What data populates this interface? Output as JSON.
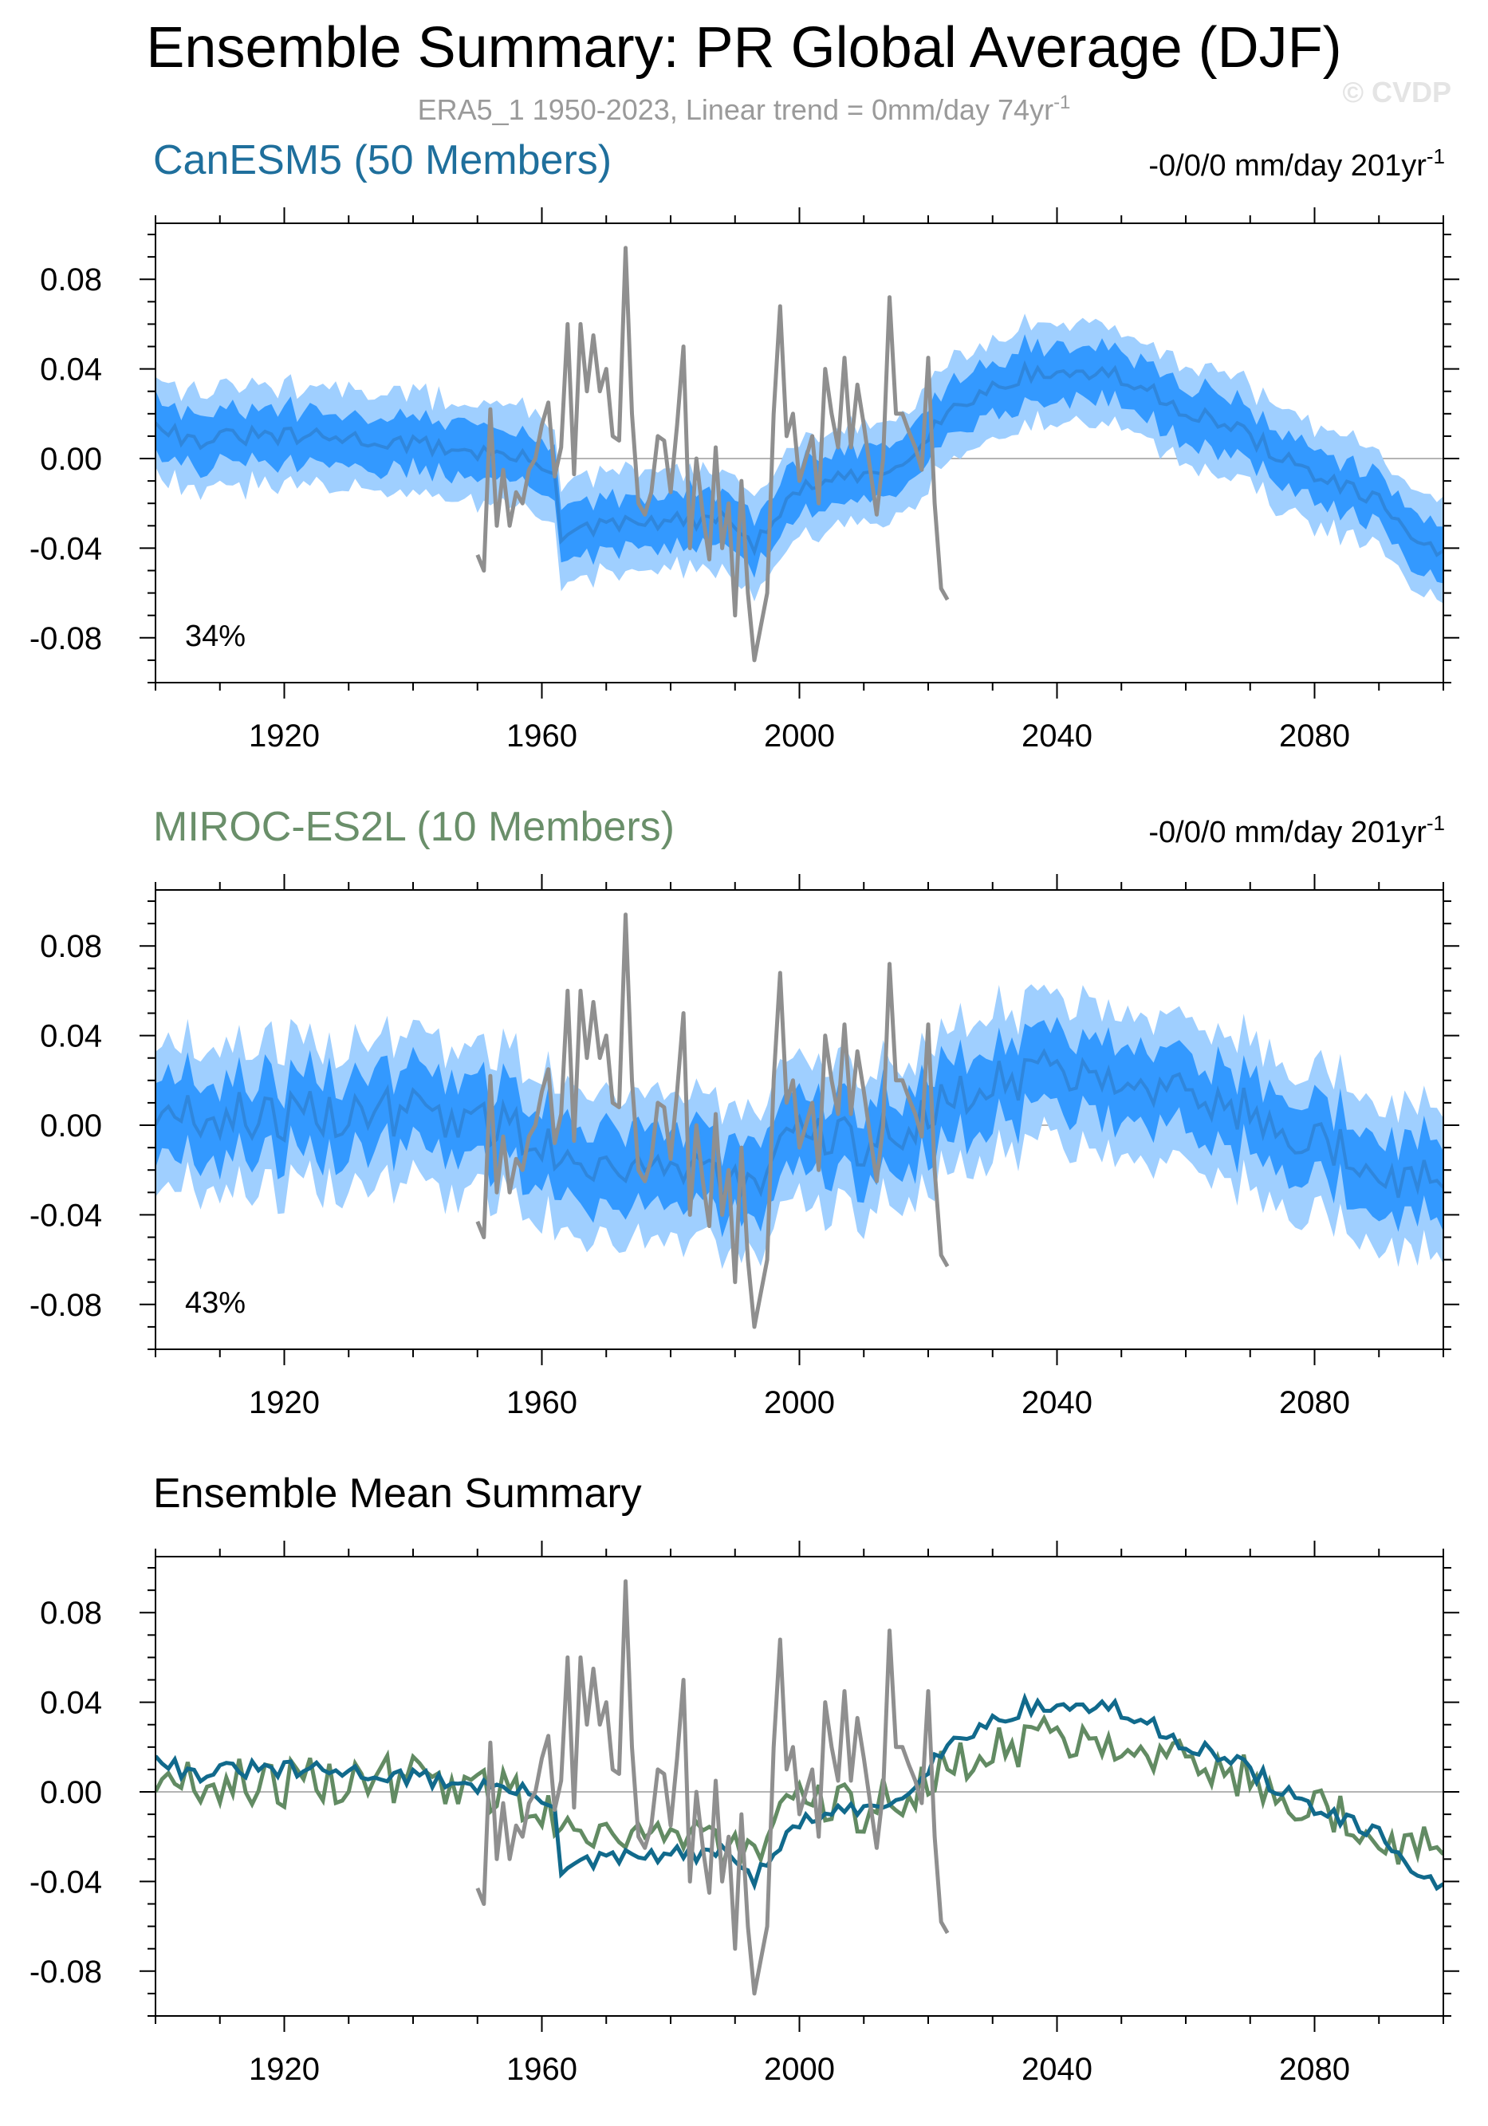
{
  "header": {
    "title": "Ensemble Summary: PR Global Average (DJF)",
    "subtitle_main": "ERA5_1 1950-2023, Linear trend = 0mm/day 74yr",
    "subtitle_sup": "-1",
    "watermark": "© CVDP"
  },
  "colors": {
    "obs": "#8f8f8f",
    "band_outer": "#9fcfff",
    "band_inner": "#3399ff",
    "mean_line": "#2f86dc",
    "canesm5": "#116a8c",
    "miroc": "#628b63",
    "zero_line": "#b4b4b4"
  },
  "chart_data": [
    {
      "id": "canesm5",
      "type": "area",
      "title": "CanESM5 (50 Members)",
      "title_color": "#1f6f9c",
      "trend_label": "-0/0/0 mm/day 201yr",
      "trend_sup": "-1",
      "percent_label": "34%",
      "xlim": [
        1900,
        2100
      ],
      "ylim": [
        -0.1,
        0.105
      ],
      "xticks": [
        "1920",
        "1960",
        "2000",
        "2040",
        "2080"
      ],
      "yticks": [
        "0.08",
        "0.04",
        "0.00",
        "-0.04",
        "-0.08"
      ],
      "series_mean_anchors": [
        [
          1900,
          0.018
        ],
        [
          1905,
          0.008
        ],
        [
          1915,
          0.01
        ],
        [
          1930,
          0.009
        ],
        [
          1945,
          0.005
        ],
        [
          1955,
          0.001
        ],
        [
          1962,
          -0.004
        ],
        [
          1963,
          -0.035
        ],
        [
          1970,
          -0.03
        ],
        [
          1980,
          -0.028
        ],
        [
          1990,
          -0.028
        ],
        [
          1993,
          -0.04
        ],
        [
          2000,
          -0.013
        ],
        [
          2010,
          -0.008
        ],
        [
          2015,
          -0.004
        ],
        [
          2020,
          0.012
        ],
        [
          2025,
          0.025
        ],
        [
          2035,
          0.038
        ],
        [
          2048,
          0.038
        ],
        [
          2060,
          0.022
        ],
        [
          2070,
          0.01
        ],
        [
          2078,
          -0.005
        ],
        [
          2090,
          -0.02
        ],
        [
          2100,
          -0.045
        ]
      ],
      "band_inner_halfwidth": 0.012,
      "band_outer_halfwidth": 0.022
    },
    {
      "id": "miroc",
      "type": "area",
      "title": "MIROC-ES2L (10 Members)",
      "title_color": "#6a8f6a",
      "trend_label": "-0/0/0 mm/day 201yr",
      "trend_sup": "-1",
      "percent_label": "43%",
      "xlim": [
        1900,
        2100
      ],
      "ylim": [
        -0.1,
        0.105
      ],
      "xticks": [
        "1920",
        "1960",
        "2000",
        "2040",
        "2080"
      ],
      "yticks": [
        "0.08",
        "0.04",
        "0.00",
        "-0.04",
        "-0.08"
      ],
      "series_mean_anchors": [
        [
          1900,
          0.005
        ],
        [
          1920,
          0.004
        ],
        [
          1940,
          0.006
        ],
        [
          1955,
          0.0
        ],
        [
          1965,
          -0.015
        ],
        [
          1975,
          -0.018
        ],
        [
          1985,
          -0.02
        ],
        [
          1993,
          -0.03
        ],
        [
          2000,
          -0.005
        ],
        [
          2010,
          -0.008
        ],
        [
          2020,
          0.005
        ],
        [
          2030,
          0.02
        ],
        [
          2040,
          0.025
        ],
        [
          2050,
          0.025
        ],
        [
          2060,
          0.015
        ],
        [
          2070,
          0.005
        ],
        [
          2080,
          -0.005
        ],
        [
          2090,
          -0.02
        ],
        [
          2100,
          -0.027
        ]
      ],
      "band_inner_halfwidth": 0.017,
      "band_outer_halfwidth": 0.032
    },
    {
      "id": "summary",
      "type": "line",
      "title": "Ensemble Mean Summary",
      "title_color": "#000000",
      "xlim": [
        1900,
        2100
      ],
      "ylim": [
        -0.1,
        0.105
      ],
      "xticks": [
        "1920",
        "1960",
        "2000",
        "2040",
        "2080"
      ],
      "yticks": [
        "0.08",
        "0.04",
        "0.00",
        "-0.04",
        "-0.08"
      ],
      "series_names": [
        "CanESM5",
        "MIROC-ES2L"
      ]
    }
  ],
  "obs_series": {
    "name": "ERA5_1",
    "years": [
      1950,
      1951,
      1952,
      1953,
      1954,
      1955,
      1956,
      1957,
      1958,
      1959,
      1960,
      1961,
      1962,
      1963,
      1964,
      1965,
      1966,
      1967,
      1968,
      1969,
      1970,
      1971,
      1972,
      1973,
      1974,
      1975,
      1976,
      1977,
      1978,
      1979,
      1980,
      1981,
      1982,
      1983,
      1984,
      1985,
      1986,
      1987,
      1988,
      1989,
      1990,
      1991,
      1992,
      1993,
      1994,
      1995,
      1996,
      1997,
      1998,
      1999,
      2000,
      2001,
      2002,
      2003,
      2004,
      2005,
      2006,
      2007,
      2008,
      2009,
      2010,
      2011,
      2012,
      2013,
      2014,
      2015,
      2016,
      2017,
      2018,
      2019,
      2020,
      2021,
      2022,
      2023
    ],
    "values": [
      -0.043,
      -0.05,
      0.022,
      -0.03,
      -0.005,
      -0.03,
      -0.015,
      -0.02,
      -0.005,
      0.0,
      0.015,
      0.025,
      -0.008,
      0.005,
      0.06,
      -0.007,
      0.06,
      0.03,
      0.055,
      0.03,
      0.04,
      0.01,
      0.008,
      0.094,
      0.02,
      -0.02,
      -0.025,
      -0.015,
      0.01,
      0.008,
      -0.015,
      0.015,
      0.05,
      -0.04,
      0.0,
      -0.025,
      -0.045,
      0.005,
      -0.04,
      -0.02,
      -0.07,
      -0.01,
      -0.06,
      -0.09,
      -0.075,
      -0.06,
      0.02,
      0.068,
      0.01,
      0.02,
      -0.01,
      0.0,
      0.01,
      -0.02,
      0.04,
      0.02,
      0.005,
      0.045,
      0.005,
      0.033,
      0.015,
      -0.005,
      -0.025,
      0.0,
      0.072,
      0.02,
      0.02,
      0.012,
      0.005,
      -0.005,
      0.045,
      -0.02,
      -0.058,
      -0.063
    ]
  }
}
